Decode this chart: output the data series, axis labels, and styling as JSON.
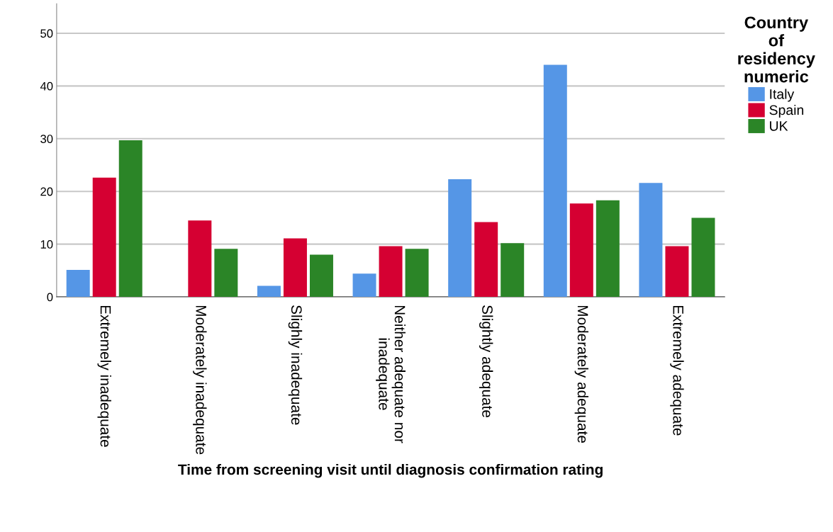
{
  "chart_data": {
    "type": "bar",
    "xlabel": "Time from screening visit until diagnosis confirmation rating",
    "legend_title": "Country\nof\nresidency\nnumeric",
    "categories": [
      "Extremely inadequate",
      "Moderately inadequate",
      "Slighly inadequate",
      "Neither adequate nor inadequate",
      "Slightly adequate",
      "Moderately adequate",
      "Extremely adequate"
    ],
    "series": [
      {
        "name": "Italy",
        "color": "#5596e6",
        "values": [
          5.1,
          0,
          2.1,
          4.4,
          22.3,
          44.0,
          21.6
        ]
      },
      {
        "name": "Spain",
        "color": "#d50032",
        "values": [
          22.6,
          14.5,
          11.1,
          9.6,
          14.2,
          17.7,
          9.6
        ]
      },
      {
        "name": "UK",
        "color": "#2b8527",
        "values": [
          29.7,
          9.1,
          8.0,
          9.1,
          10.2,
          18.3,
          15.0
        ]
      }
    ],
    "ylim": [
      0,
      55.6
    ],
    "yticks": [
      0,
      10,
      20,
      30,
      40,
      50
    ],
    "grid": "y",
    "legend": "top right"
  }
}
